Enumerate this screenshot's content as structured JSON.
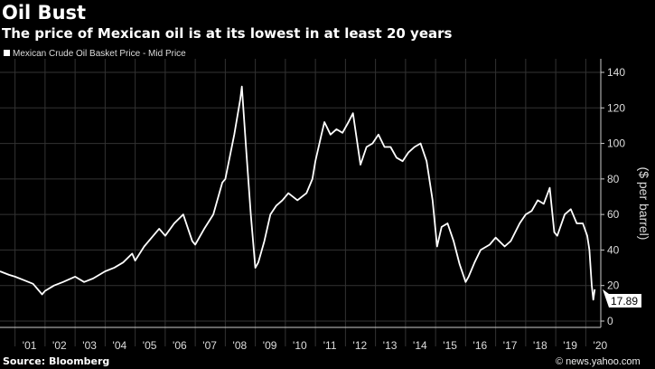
{
  "chart_data": {
    "type": "line",
    "title": "Oil Bust",
    "subtitle": "The price of Mexican oil is at its lowest in at least 20 years",
    "legend": [
      "Mexican Crude Oil Basket Price - Mid Price"
    ],
    "legend_placement": "top-left",
    "ylabel": "($ per barrel)",
    "xlabel": "",
    "ylim": [
      0,
      140
    ],
    "yticks": [
      0,
      20,
      40,
      60,
      80,
      100,
      120,
      140
    ],
    "xlim": [
      2000.5,
      2020.5
    ],
    "xtick_labels": [
      "'01",
      "'02",
      "'03",
      "'04",
      "'05",
      "'06",
      "'07",
      "'08",
      "'09",
      "'10",
      "'11",
      "'12",
      "'13",
      "'14",
      "'15",
      "'16",
      "'17",
      "'18",
      "'19",
      "'20"
    ],
    "grid": true,
    "line_color": "#ffffff",
    "last_value_label": "17.89",
    "series": [
      {
        "name": "Mexican Crude Oil Basket Price - Mid Price",
        "x": [
          2000.5,
          2000.8,
          2001.0,
          2001.3,
          2001.6,
          2001.9,
          2002.0,
          2002.3,
          2002.6,
          2003.0,
          2003.3,
          2003.6,
          2004.0,
          2004.3,
          2004.6,
          2004.9,
          2005.0,
          2005.3,
          2005.6,
          2005.8,
          2006.0,
          2006.3,
          2006.6,
          2006.9,
          2007.0,
          2007.3,
          2007.6,
          2007.9,
          2008.0,
          2008.3,
          2008.5,
          2008.55,
          2008.7,
          2008.85,
          2009.0,
          2009.1,
          2009.3,
          2009.5,
          2009.7,
          2009.9,
          2010.1,
          2010.4,
          2010.7,
          2010.9,
          2011.0,
          2011.2,
          2011.3,
          2011.5,
          2011.7,
          2011.9,
          2012.1,
          2012.25,
          2012.5,
          2012.7,
          2012.9,
          2013.1,
          2013.3,
          2013.5,
          2013.7,
          2013.9,
          2014.1,
          2014.3,
          2014.5,
          2014.7,
          2014.9,
          2015.05,
          2015.2,
          2015.4,
          2015.6,
          2015.8,
          2016.0,
          2016.1,
          2016.3,
          2016.5,
          2016.8,
          2017.0,
          2017.3,
          2017.5,
          2017.8,
          2018.0,
          2018.2,
          2018.4,
          2018.6,
          2018.8,
          2018.95,
          2019.05,
          2019.3,
          2019.5,
          2019.7,
          2019.9,
          2020.05,
          2020.12,
          2020.2,
          2020.25,
          2020.3
        ],
        "values": [
          28,
          26,
          25,
          23,
          21,
          15,
          17,
          20,
          22,
          25,
          22,
          24,
          28,
          30,
          33,
          38,
          34,
          42,
          48,
          52,
          48,
          55,
          60,
          45,
          43,
          52,
          60,
          78,
          80,
          105,
          125,
          132,
          95,
          60,
          30,
          33,
          45,
          60,
          65,
          68,
          72,
          68,
          72,
          80,
          90,
          105,
          112,
          105,
          108,
          106,
          112,
          117,
          88,
          98,
          100,
          105,
          98,
          98,
          92,
          90,
          95,
          98,
          100,
          90,
          68,
          42,
          53,
          55,
          45,
          32,
          22,
          25,
          33,
          40,
          43,
          47,
          42,
          45,
          55,
          60,
          62,
          68,
          66,
          75,
          50,
          48,
          60,
          63,
          55,
          55,
          48,
          40,
          20,
          12,
          17.89
        ]
      }
    ]
  },
  "source": "Source: Bloomberg",
  "credit": "© news.yahoo.com"
}
